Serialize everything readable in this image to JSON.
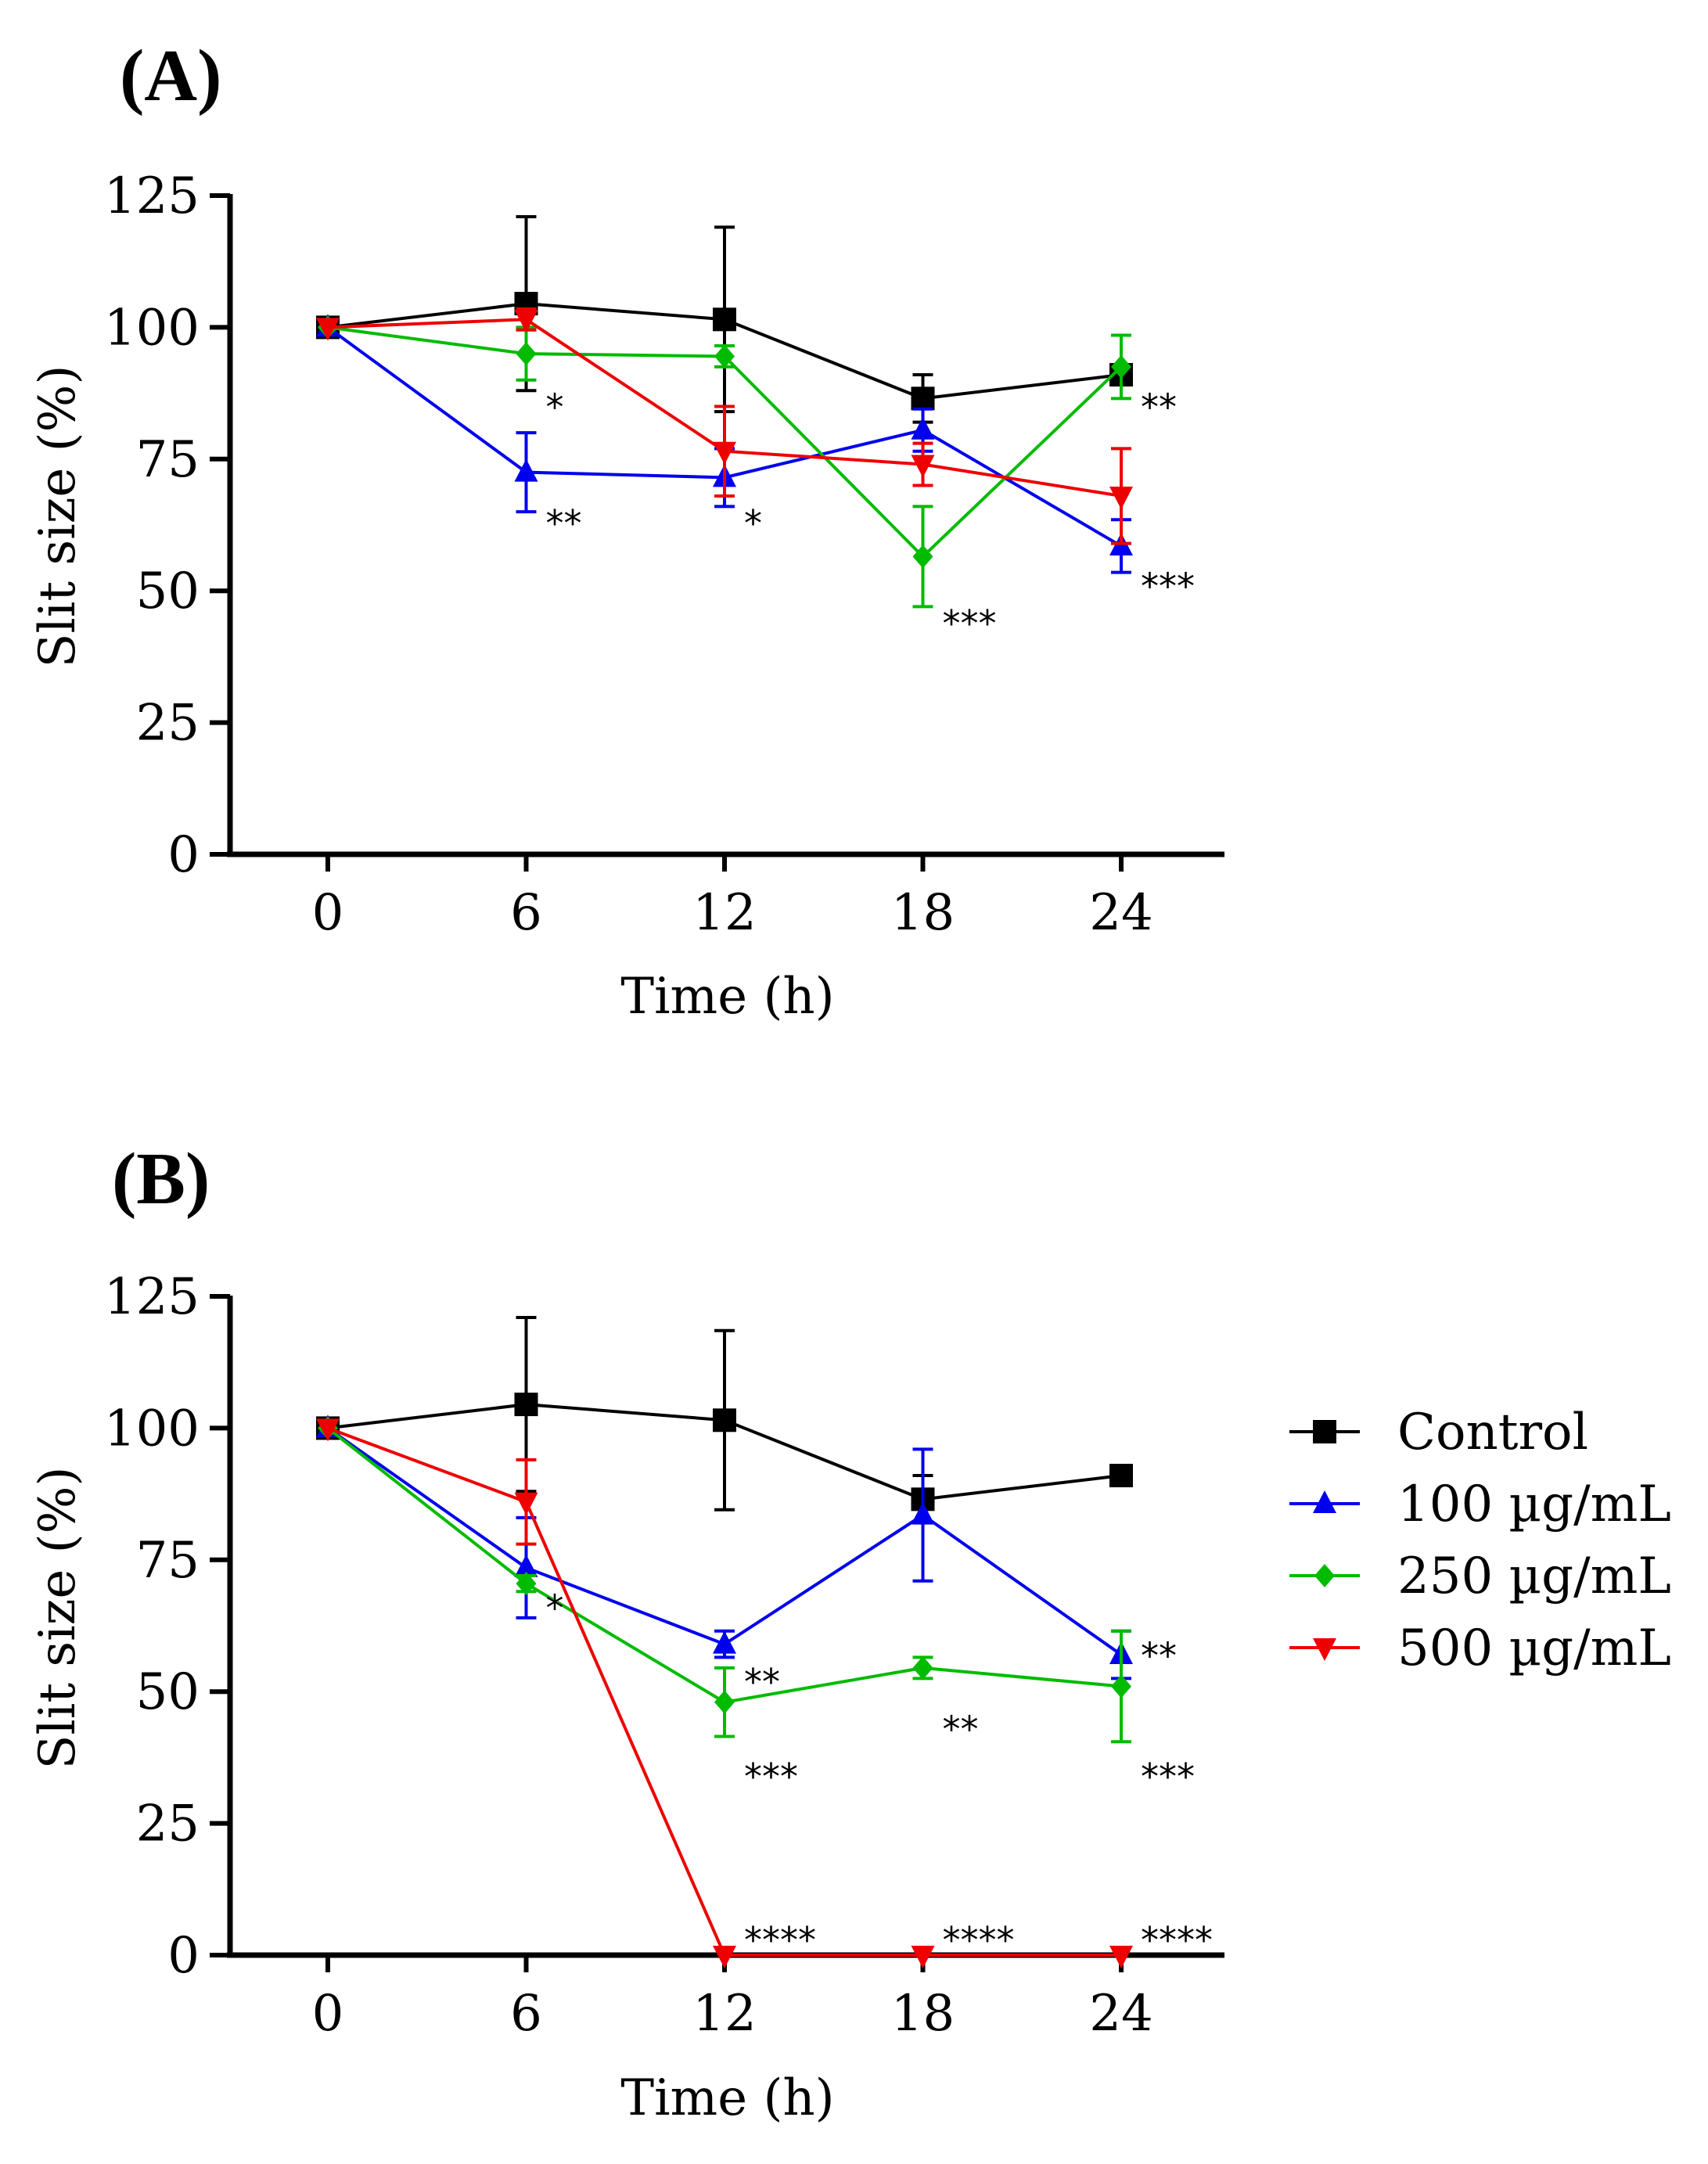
{
  "legend": {
    "entries": [
      {
        "key": "control",
        "label": "Control"
      },
      {
        "key": "c100",
        "label": "100 µg/mL"
      },
      {
        "key": "c250",
        "label": "250 µg/mL"
      },
      {
        "key": "c500",
        "label": "500 µg/mL"
      }
    ]
  },
  "colors": {
    "control": "#000000",
    "c100": "#0000ee",
    "c250": "#00bb00",
    "c500": "#ee0000"
  },
  "markers": {
    "control": "square",
    "c100": "triangle-up",
    "c250": "diamond",
    "c500": "triangle-down"
  },
  "chart_data": [
    {
      "panel": "(A)",
      "type": "line",
      "xlabel": "Time (h)",
      "ylabel": "Slit size (%)",
      "x": [
        0,
        6,
        12,
        18,
        24
      ],
      "x_ticks": [
        "0",
        "6",
        "12",
        "18",
        "24"
      ],
      "ylim": [
        0,
        125
      ],
      "y_ticks": [
        "0",
        "25",
        "50",
        "75",
        "100",
        "125"
      ],
      "series": [
        {
          "key": "control",
          "name": "Control",
          "values": [
            100,
            104.5,
            101.5,
            86.5,
            91
          ],
          "errors": [
            0,
            16.5,
            17.5,
            4.5,
            0
          ]
        },
        {
          "key": "c100",
          "name": "100 µg/mL",
          "values": [
            100,
            72.5,
            71.5,
            80.5,
            58.5
          ],
          "errors": [
            0,
            7.5,
            5.5,
            4,
            5
          ]
        },
        {
          "key": "c250",
          "name": "250 µg/mL",
          "values": [
            100,
            95,
            94.5,
            56.5,
            92.5
          ],
          "errors": [
            0,
            5,
            2,
            9.5,
            6
          ]
        },
        {
          "key": "c500",
          "name": "500 µg/mL",
          "values": [
            100,
            101.5,
            76.5,
            74,
            68
          ],
          "errors": [
            0,
            2,
            8.5,
            4,
            9
          ]
        }
      ],
      "annotations": [
        {
          "text": "*",
          "x": 6,
          "y": 86
        },
        {
          "text": "**",
          "x": 6,
          "y": 64
        },
        {
          "text": "*",
          "x": 12,
          "y": 64
        },
        {
          "text": "***",
          "x": 18,
          "y": 45
        },
        {
          "text": "**",
          "x": 24,
          "y": 86
        },
        {
          "text": "***",
          "x": 24,
          "y": 52
        }
      ]
    },
    {
      "panel": "(B)",
      "type": "line",
      "xlabel": "Time (h)",
      "ylabel": "Slit size (%)",
      "x": [
        0,
        6,
        12,
        18,
        24
      ],
      "x_ticks": [
        "0",
        "6",
        "12",
        "18",
        "24"
      ],
      "ylim": [
        0,
        125
      ],
      "y_ticks": [
        "0",
        "25",
        "50",
        "75",
        "100",
        "125"
      ],
      "series": [
        {
          "key": "control",
          "name": "Control",
          "values": [
            100,
            104.5,
            101.5,
            86.5,
            91
          ],
          "errors": [
            0,
            16.5,
            17,
            4.5,
            0
          ]
        },
        {
          "key": "c100",
          "name": "100 µg/mL",
          "values": [
            100,
            73.5,
            59,
            83.5,
            57
          ],
          "errors": [
            0,
            9.5,
            2.5,
            12.5,
            4.5
          ]
        },
        {
          "key": "c250",
          "name": "250 µg/mL",
          "values": [
            100,
            70.5,
            48,
            54.5,
            51
          ],
          "errors": [
            0,
            1.5,
            6.5,
            2,
            10.5
          ]
        },
        {
          "key": "c500",
          "name": "500 µg/mL",
          "values": [
            100,
            86,
            0,
            0,
            0
          ],
          "errors": [
            0,
            8,
            0,
            0,
            0
          ]
        }
      ],
      "annotations": [
        {
          "text": "*",
          "x": 6,
          "y": 67
        },
        {
          "text": "**",
          "x": 12,
          "y": 53
        },
        {
          "text": "***",
          "x": 12,
          "y": 35
        },
        {
          "text": "**",
          "x": 18,
          "y": 44
        },
        {
          "text": "**",
          "x": 24,
          "y": 58
        },
        {
          "text": "***",
          "x": 24,
          "y": 35
        },
        {
          "text": "****",
          "x": 12,
          "y": 4
        },
        {
          "text": "****",
          "x": 18,
          "y": 4
        },
        {
          "text": "****",
          "x": 24,
          "y": 4
        }
      ]
    }
  ]
}
